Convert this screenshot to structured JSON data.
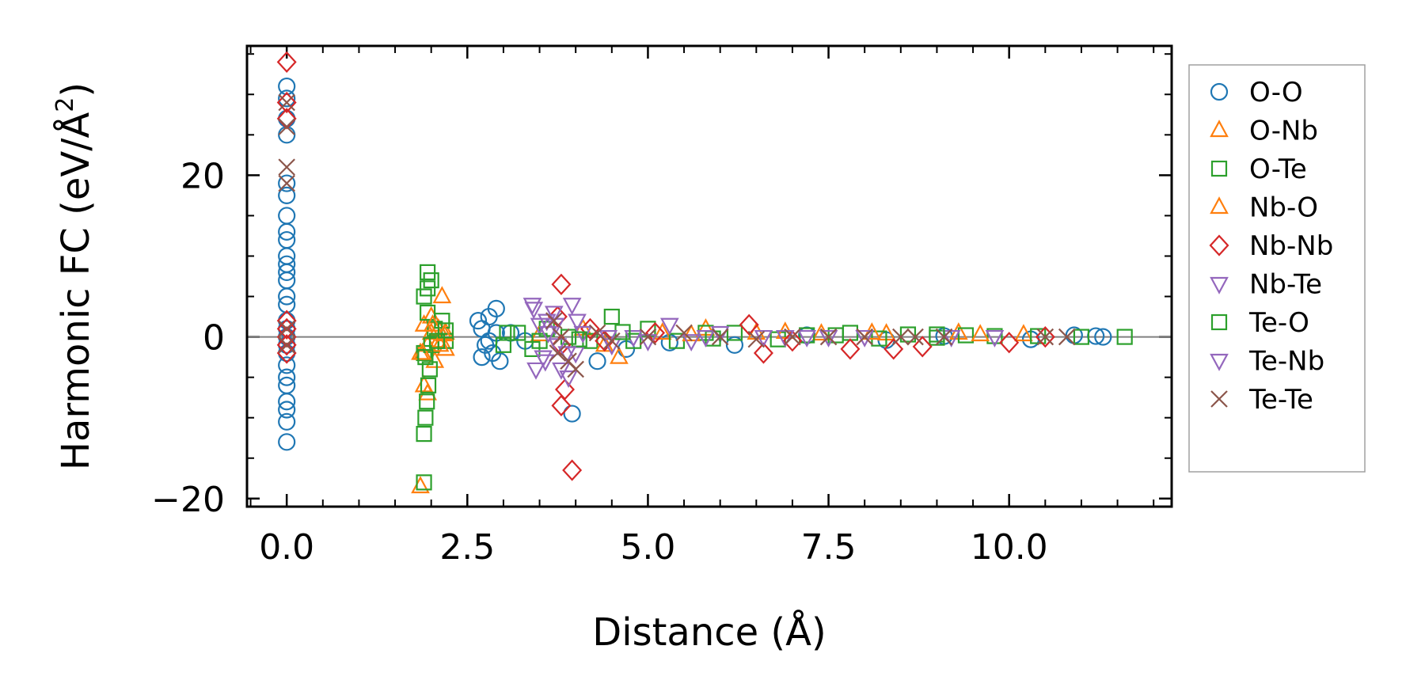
{
  "chart_data": {
    "type": "scatter",
    "title": "",
    "xlabel": "Distance (Å)",
    "ylabel_main": "Harmonic FC (eV/Å",
    "ylabel_sup": "2",
    "ylabel_close": ")",
    "xlim": [
      -0.55,
      12.25
    ],
    "ylim": [
      -21,
      36
    ],
    "xticks": [
      0,
      2.5,
      5,
      7.5,
      10
    ],
    "xtick_labels": [
      "0.0",
      "2.5",
      "5.0",
      "7.5",
      "10.0"
    ],
    "yticks": [
      -20,
      0,
      20
    ],
    "ytick_labels": [
      "−20",
      "0",
      "20"
    ],
    "hline_y": 0,
    "legend_position": "outside-right",
    "series": [
      {
        "name": "O-O",
        "marker": "circle",
        "color": "#1f77b4",
        "points": [
          [
            0,
            31
          ],
          [
            0,
            29.5
          ],
          [
            0,
            27
          ],
          [
            0,
            25
          ],
          [
            0,
            19
          ],
          [
            0,
            17.5
          ],
          [
            0,
            15
          ],
          [
            0,
            13
          ],
          [
            0,
            12
          ],
          [
            0,
            10
          ],
          [
            0,
            9
          ],
          [
            0,
            8
          ],
          [
            0,
            7
          ],
          [
            0,
            5
          ],
          [
            0,
            4
          ],
          [
            0,
            2
          ],
          [
            0,
            1
          ],
          [
            0,
            0
          ],
          [
            0,
            -1
          ],
          [
            0,
            -2
          ],
          [
            0,
            -3.5
          ],
          [
            0,
            -5
          ],
          [
            0,
            -6
          ],
          [
            0,
            -8
          ],
          [
            0,
            -9
          ],
          [
            0,
            -10.5
          ],
          [
            0,
            -13
          ],
          [
            2.65,
            2
          ],
          [
            2.7,
            1
          ],
          [
            2.75,
            -1
          ],
          [
            2.8,
            2.5
          ],
          [
            2.85,
            -2
          ],
          [
            2.9,
            3.5
          ],
          [
            2.95,
            -3
          ],
          [
            2.9,
            0.5
          ],
          [
            2.8,
            -0.5
          ],
          [
            2.7,
            -2.5
          ],
          [
            3.1,
            0.5
          ],
          [
            3.3,
            -0.5
          ],
          [
            3.95,
            -9.5
          ],
          [
            4.3,
            -3
          ],
          [
            4.7,
            -1.5
          ],
          [
            5.3,
            -0.7
          ],
          [
            6.2,
            -1
          ],
          [
            7.2,
            0.2
          ],
          [
            8.3,
            -0.4
          ],
          [
            9.1,
            0.1
          ],
          [
            10.3,
            -0.3
          ],
          [
            10.9,
            0.2
          ],
          [
            11.2,
            0.1
          ],
          [
            11.3,
            0
          ]
        ]
      },
      {
        "name": "O-Nb",
        "marker": "triangle-up",
        "color": "#ff7f0e",
        "points": [
          [
            1.85,
            -18.5
          ],
          [
            1.85,
            -2
          ],
          [
            1.9,
            1.5
          ],
          [
            1.95,
            -1
          ],
          [
            2.0,
            0.5
          ],
          [
            2.05,
            -3
          ],
          [
            2.1,
            1
          ],
          [
            2.15,
            5
          ],
          [
            2.2,
            -1.5
          ],
          [
            1.9,
            -6
          ],
          [
            1.95,
            -7
          ],
          [
            2.0,
            2.5
          ],
          [
            2.1,
            -0.5
          ],
          [
            2.2,
            0.5
          ],
          [
            3.5,
            0.3
          ],
          [
            4.1,
            1
          ],
          [
            4.6,
            -2.5
          ],
          [
            5.2,
            0.5
          ],
          [
            5.8,
            1
          ],
          [
            6.5,
            0.5
          ],
          [
            7.4,
            0.4
          ],
          [
            8.3,
            0.4
          ],
          [
            9.3,
            0.5
          ],
          [
            10.2,
            0.3
          ]
        ]
      },
      {
        "name": "O-Te",
        "marker": "square",
        "color": "#2ca02c",
        "points": [
          [
            1.9,
            -18
          ],
          [
            1.9,
            -12
          ],
          [
            1.92,
            -10
          ],
          [
            1.94,
            -8
          ],
          [
            1.96,
            -6
          ],
          [
            1.98,
            -4
          ],
          [
            1.9,
            -2
          ],
          [
            1.95,
            8
          ],
          [
            2.0,
            7
          ],
          [
            1.95,
            6
          ],
          [
            1.9,
            5
          ],
          [
            1.95,
            3
          ],
          [
            2.0,
            -1
          ],
          [
            2.05,
            1
          ],
          [
            2.15,
            2
          ],
          [
            2.2,
            -0.5
          ],
          [
            3.0,
            -1
          ],
          [
            3.2,
            0.5
          ],
          [
            3.4,
            -1.5
          ],
          [
            3.6,
            1
          ],
          [
            3.9,
            0
          ],
          [
            4.2,
            -0.5
          ],
          [
            4.5,
            2.5
          ],
          [
            4.8,
            -0.5
          ],
          [
            5.0,
            1
          ],
          [
            5.4,
            -0.5
          ],
          [
            5.8,
            0.5
          ],
          [
            6.2,
            0.5
          ],
          [
            6.8,
            -0.3
          ],
          [
            7.2,
            0.2
          ],
          [
            7.8,
            0.5
          ],
          [
            8.2,
            -0.2
          ],
          [
            8.6,
            0.3
          ],
          [
            9.0,
            -0.1
          ],
          [
            9.4,
            0.2
          ],
          [
            9.8,
            0.1
          ],
          [
            10.4,
            0.1
          ],
          [
            11.0,
            0
          ],
          [
            11.6,
            0
          ]
        ]
      },
      {
        "name": "Nb-O",
        "marker": "triangle-up",
        "color": "#ff7f0e",
        "points": [
          [
            1.88,
            -2
          ],
          [
            2.02,
            1.5
          ],
          [
            2.12,
            -1
          ],
          [
            2.18,
            0.3
          ],
          [
            4.4,
            -1
          ],
          [
            5.6,
            0.3
          ],
          [
            6.9,
            0.6
          ],
          [
            8.1,
            0.5
          ],
          [
            9.6,
            0.3
          ]
        ]
      },
      {
        "name": "Nb-Nb",
        "marker": "diamond",
        "color": "#d62728",
        "points": [
          [
            0,
            34
          ],
          [
            0,
            29
          ],
          [
            0,
            27
          ],
          [
            0,
            2
          ],
          [
            0,
            1
          ],
          [
            0,
            0
          ],
          [
            0,
            -1
          ],
          [
            0,
            -2
          ],
          [
            3.8,
            6.5
          ],
          [
            3.75,
            2.5
          ],
          [
            3.8,
            -1
          ],
          [
            3.85,
            -6.5
          ],
          [
            3.8,
            -8.5
          ],
          [
            3.95,
            -16.5
          ],
          [
            4.2,
            1
          ],
          [
            4.4,
            -0.5
          ],
          [
            5.1,
            0.5
          ],
          [
            6.4,
            1.5
          ],
          [
            6.6,
            -2
          ],
          [
            7.0,
            -0.5
          ],
          [
            7.8,
            -1.5
          ],
          [
            8.4,
            -1.5
          ],
          [
            8.8,
            -1.2
          ],
          [
            10.0,
            -0.7
          ],
          [
            10.5,
            0
          ]
        ]
      },
      {
        "name": "Nb-Te",
        "marker": "triangle-down",
        "color": "#9467bd",
        "points": [
          [
            3.4,
            4
          ],
          [
            3.45,
            -4
          ],
          [
            3.5,
            1.5
          ],
          [
            3.55,
            -2.5
          ],
          [
            3.6,
            2
          ],
          [
            3.7,
            3
          ],
          [
            3.75,
            -1
          ],
          [
            3.8,
            -4
          ],
          [
            3.9,
            -5
          ],
          [
            3.95,
            4
          ],
          [
            4.0,
            -2
          ],
          [
            4.1,
            0.5
          ],
          [
            4.5,
            -1
          ],
          [
            4.8,
            0
          ],
          [
            5.3,
            1.5
          ],
          [
            5.6,
            -0.5
          ],
          [
            6.0,
            0.5
          ],
          [
            6.6,
            0
          ],
          [
            7.2,
            0
          ],
          [
            8.0,
            0
          ],
          [
            9.2,
            0
          ],
          [
            9.8,
            0
          ]
        ]
      },
      {
        "name": "Te-O",
        "marker": "square",
        "color": "#2ca02c",
        "points": [
          [
            1.92,
            -2.5
          ],
          [
            2.08,
            -0.5
          ],
          [
            2.2,
            0.8
          ],
          [
            3.05,
            0.5
          ],
          [
            3.5,
            -0.5
          ],
          [
            4.05,
            -0.3
          ],
          [
            4.65,
            0.6
          ],
          [
            5.9,
            -0.2
          ],
          [
            7.6,
            0.2
          ],
          [
            9.0,
            0.3
          ]
        ]
      },
      {
        "name": "Te-Nb",
        "marker": "triangle-down",
        "color": "#9467bd",
        "points": [
          [
            3.42,
            3.5
          ],
          [
            3.58,
            -3
          ],
          [
            3.62,
            0.5
          ],
          [
            3.72,
            1.5
          ],
          [
            3.88,
            -2
          ],
          [
            4.02,
            2
          ],
          [
            4.45,
            0
          ],
          [
            5.0,
            -0.5
          ],
          [
            5.8,
            0
          ],
          [
            6.9,
            0
          ],
          [
            7.5,
            0
          ]
        ]
      },
      {
        "name": "Te-Te",
        "marker": "x",
        "color": "#8c564b",
        "points": [
          [
            0,
            29
          ],
          [
            0,
            26
          ],
          [
            0,
            21
          ],
          [
            0,
            19
          ],
          [
            0,
            1
          ],
          [
            0,
            -1
          ],
          [
            3.7,
            2
          ],
          [
            3.75,
            -2
          ],
          [
            3.8,
            0
          ],
          [
            3.9,
            -3
          ],
          [
            4.0,
            -4
          ],
          [
            4.3,
            0.5
          ],
          [
            4.5,
            -0.5
          ],
          [
            5.0,
            0
          ],
          [
            5.5,
            0.5
          ],
          [
            6.0,
            0
          ],
          [
            6.5,
            -0.3
          ],
          [
            7.0,
            0
          ],
          [
            7.5,
            0
          ],
          [
            8.0,
            0
          ],
          [
            8.5,
            0
          ],
          [
            8.7,
            0
          ],
          [
            9.1,
            0
          ],
          [
            10.5,
            0
          ],
          [
            10.8,
            0
          ]
        ]
      }
    ]
  }
}
